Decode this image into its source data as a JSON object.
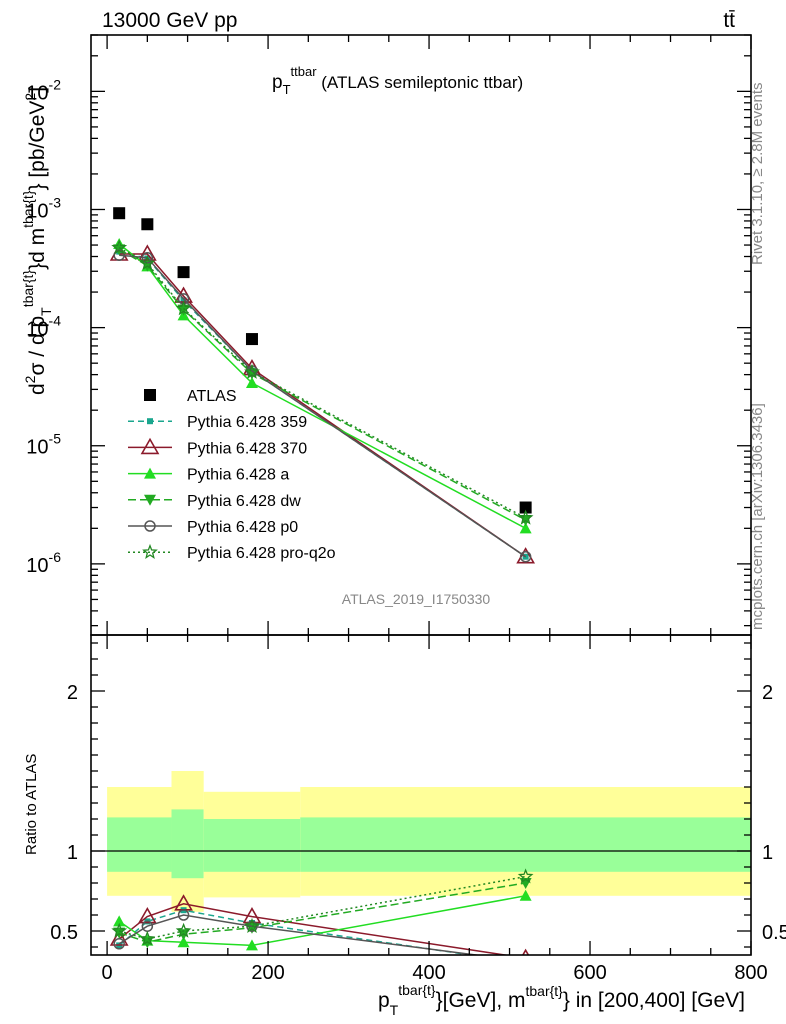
{
  "header": {
    "energy": "13000 GeV pp",
    "process": "tt̄"
  },
  "side": {
    "rivet": "Rivet 3.1.10, ≥ 2.8M events",
    "mcplots": "mcplots.cern.ch [arXiv:1306.3436]"
  },
  "plot_title": {
    "main": "p",
    "sub": "T",
    "sup": "ttbar",
    "rest": " (ATLAS semileptonic ttbar)"
  },
  "analysis_id": "ATLAS_2019_I1750330",
  "ylabel_main": {
    "p1": "d",
    "p1sup": "2",
    "p2": "σ / d p",
    "p2sub": "T",
    "p2sup": "tbar{t}",
    "p3": "}d m",
    "p3sup": "tbar{t}",
    "p4": "} [pb/GeV",
    "p4sup": "2",
    "p5": "]"
  },
  "ylabel_ratio": "Ratio to ATLAS",
  "xlabel": {
    "p1": "p",
    "p1sub": "T",
    "p1sup": "tbar{t}",
    "p2": "}[GeV], m",
    "p2sup": "tbar{t}",
    "p3": "} in [200,400] [GeV]"
  },
  "chart_data": [
    {
      "type": "line",
      "panel": "main",
      "y_scale": "log",
      "xlim": [
        -20,
        800
      ],
      "ylim": [
        2.5e-07,
        0.03
      ],
      "y_ticks": [
        {
          "v": 1e-06,
          "base": "10",
          "exp": "-6"
        },
        {
          "v": 1e-05,
          "base": "10",
          "exp": "-5"
        },
        {
          "v": 0.0001,
          "base": "10",
          "exp": "-4"
        },
        {
          "v": 0.001,
          "base": "10",
          "exp": "-3"
        },
        {
          "v": 0.01,
          "base": "10",
          "exp": "-2"
        }
      ],
      "legend_position": "middle-left",
      "series": [
        {
          "name": "ATLAS",
          "color": "#000000",
          "marker": "square",
          "dash": "none",
          "x": [
            15,
            50,
            95,
            180,
            520
          ],
          "y": [
            0.00093,
            0.00075,
            0.000295,
            8e-05,
            3e-06
          ]
        },
        {
          "name": "Pythia 6.428 359",
          "color": "#1aa68e",
          "marker": "smallsquare",
          "dash": "6,4",
          "x": [
            15,
            50,
            95,
            180,
            520
          ],
          "y": [
            0.00044,
            0.000385,
            0.00017,
            4.3e-05,
            1.15e-06
          ]
        },
        {
          "name": "Pythia 6.428 370",
          "color": "#8b1a2b",
          "marker": "triangle-open",
          "dash": "none",
          "x": [
            15,
            50,
            95,
            180,
            520
          ],
          "y": [
            0.00042,
            0.00042,
            0.000185,
            4.5e-05,
            1.15e-06
          ]
        },
        {
          "name": "Pythia 6.428 a",
          "color": "#22dd22",
          "marker": "triangle",
          "dash": "none",
          "x": [
            15,
            50,
            95,
            180,
            520
          ],
          "y": [
            0.00051,
            0.00033,
            0.000127,
            3.4e-05,
            2e-06
          ]
        },
        {
          "name": "Pythia 6.428 dw",
          "color": "#22aa22",
          "marker": "triangle-down",
          "dash": "8,4",
          "x": [
            15,
            50,
            95,
            180,
            520
          ],
          "y": [
            0.00046,
            0.000335,
            0.000142,
            4.1e-05,
            2.35e-06
          ]
        },
        {
          "name": "Pythia 6.428 p0",
          "color": "#555555",
          "marker": "circle-open",
          "dash": "none",
          "x": [
            15,
            50,
            95,
            180,
            520
          ],
          "y": [
            0.00041,
            0.00039,
            0.000175,
            4.3e-05,
            1.15e-06
          ]
        },
        {
          "name": "Pythia 6.428 pro-q2o",
          "color": "#228822",
          "marker": "star",
          "dash": "2,3",
          "x": [
            15,
            50,
            95,
            180,
            520
          ],
          "y": [
            0.000475,
            0.00035,
            0.000145,
            4.2e-05,
            2.45e-06
          ]
        }
      ]
    },
    {
      "type": "line",
      "panel": "ratio",
      "ylim": [
        0.35,
        2.35
      ],
      "y_ticks": [
        0.5,
        1,
        2
      ],
      "x_ticks": [
        0,
        200,
        400,
        600,
        800
      ],
      "bands": [
        {
          "x0": 0,
          "x1": 80,
          "yellow": [
            0.72,
            1.4
          ],
          "green": [
            0.87,
            1.21
          ]
        },
        {
          "x0": 80,
          "x1": 120,
          "yellow": [
            0.62,
            1.5
          ],
          "green": [
            0.83,
            1.26
          ]
        },
        {
          "x0": 120,
          "x1": 240,
          "yellow": [
            0.71,
            1.37
          ],
          "green": [
            0.87,
            1.2
          ]
        },
        {
          "x0": 240,
          "x1": 800,
          "yellow": [
            0.72,
            1.4
          ],
          "green": [
            0.87,
            1.21
          ]
        }
      ],
      "series": [
        {
          "name": "Pythia 6.428 359",
          "color": "#1aa68e",
          "marker": "smallsquare",
          "dash": "6,4",
          "x": [
            15,
            50,
            95,
            180,
            520
          ],
          "y": [
            0.41,
            0.56,
            0.63,
            0.55,
            0.3
          ]
        },
        {
          "name": "Pythia 6.428 370",
          "color": "#8b1a2b",
          "marker": "triangle-open",
          "dash": "none",
          "x": [
            15,
            50,
            95,
            180,
            520
          ],
          "y": [
            0.45,
            0.59,
            0.67,
            0.59,
            0.33
          ]
        },
        {
          "name": "Pythia 6.428 a",
          "color": "#22dd22",
          "marker": "triangle",
          "dash": "none",
          "x": [
            15,
            50,
            95,
            180,
            520
          ],
          "y": [
            0.56,
            0.44,
            0.43,
            0.41,
            0.72
          ]
        },
        {
          "name": "Pythia 6.428 dw",
          "color": "#22aa22",
          "marker": "triangle-down",
          "dash": "8,4",
          "x": [
            15,
            50,
            95,
            180,
            520
          ],
          "y": [
            0.49,
            0.43,
            0.48,
            0.52,
            0.8
          ]
        },
        {
          "name": "Pythia 6.428 p0",
          "color": "#555555",
          "marker": "circle-open",
          "dash": "none",
          "x": [
            15,
            50,
            95,
            180,
            520
          ],
          "y": [
            0.42,
            0.53,
            0.6,
            0.53,
            0.31
          ]
        },
        {
          "name": "Pythia 6.428 pro-q2o",
          "color": "#228822",
          "marker": "star",
          "dash": "2,3",
          "x": [
            15,
            50,
            95,
            180,
            520
          ],
          "y": [
            0.5,
            0.45,
            0.5,
            0.53,
            0.84
          ]
        }
      ]
    }
  ]
}
